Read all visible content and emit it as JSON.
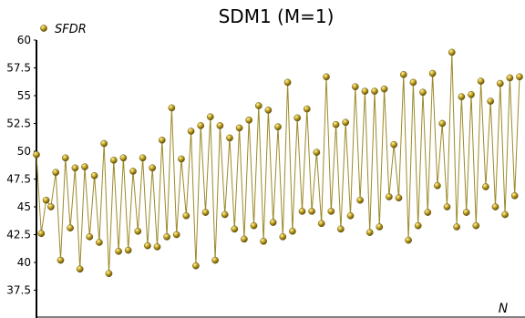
{
  "chart_data": {
    "type": "line",
    "title": "SDM1 (M=1)",
    "xlabel": "N",
    "ylabel": "",
    "ylim": [
      35,
      60
    ],
    "yticks": [
      "37.5",
      "40",
      "42.5",
      "45",
      "47.5",
      "50",
      "52.5",
      "55",
      "57.5",
      "60"
    ],
    "grid": false,
    "legend": "top-left",
    "series": [
      {
        "name": "SFDR",
        "color": "#b59a1a",
        "line_color": "#9c8a2a",
        "values": [
          49.7,
          42.6,
          45.6,
          45.0,
          48.1,
          40.2,
          49.4,
          43.1,
          48.5,
          39.4,
          48.6,
          42.3,
          47.8,
          41.8,
          50.7,
          39.0,
          49.2,
          41.0,
          49.4,
          41.1,
          48.2,
          42.8,
          49.4,
          41.5,
          48.5,
          41.4,
          51.0,
          42.3,
          53.9,
          42.5,
          49.3,
          44.2,
          51.8,
          39.7,
          52.3,
          44.5,
          53.1,
          40.2,
          52.3,
          44.3,
          51.2,
          43.0,
          52.1,
          42.1,
          52.8,
          43.3,
          54.1,
          41.9,
          53.7,
          43.6,
          52.2,
          42.3,
          56.2,
          42.8,
          53.0,
          44.6,
          53.8,
          44.6,
          49.9,
          43.5,
          56.7,
          44.6,
          52.4,
          43.0,
          52.6,
          44.2,
          55.8,
          45.6,
          55.4,
          42.7,
          55.4,
          43.2,
          55.6,
          45.9,
          50.6,
          45.8,
          56.9,
          42.0,
          56.2,
          43.3,
          55.3,
          44.5,
          57.0,
          46.9,
          52.5,
          45.0,
          58.9,
          43.2,
          54.9,
          44.5,
          55.1,
          43.3,
          56.3,
          46.8,
          54.5,
          45.0,
          56.1,
          44.3,
          56.6,
          46.0,
          56.7
        ]
      }
    ]
  }
}
